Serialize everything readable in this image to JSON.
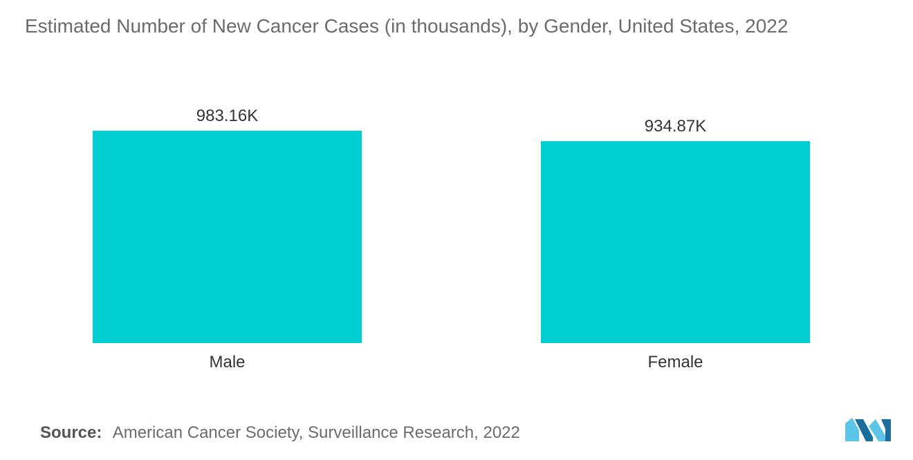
{
  "title": "Estimated Number of New Cancer Cases (in thousands), by Gender, United States, 2022",
  "source": {
    "label": "Source:",
    "text": "American Cancer Society, Surveillance Research, 2022"
  },
  "colors": {
    "bar": "#00CED1",
    "text": "#333333",
    "logo_light": "#5DC6E8",
    "logo_dark": "#1B6E9C"
  },
  "chart_data": {
    "type": "bar",
    "categories": [
      "Male",
      "Female"
    ],
    "values": [
      983.16,
      934.87
    ],
    "data_labels": [
      "983.16K",
      "934.87K"
    ],
    "title": "Estimated Number of New Cancer Cases (in thousands), by Gender, United States, 2022",
    "xlabel": "",
    "ylabel": "",
    "ylim": [
      0,
      1000
    ],
    "grid": false,
    "legend": "none"
  }
}
